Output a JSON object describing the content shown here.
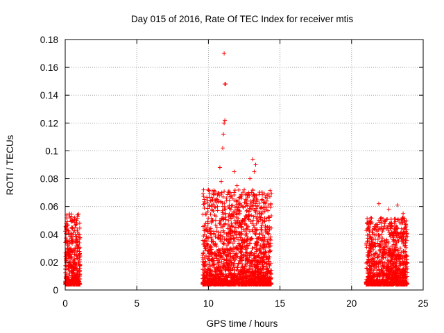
{
  "chart_data": {
    "type": "scatter",
    "title": "Day 015 of 2016, Rate Of TEC Index for receiver mtis",
    "xlabel": "GPS time / hours",
    "ylabel": "ROTI / TECUs",
    "xlim": [
      0,
      25
    ],
    "ylim": [
      0,
      0.18
    ],
    "xticks": [
      0,
      5,
      10,
      15,
      20,
      25
    ],
    "xtick_labels": [
      "0",
      "5",
      "10",
      "15",
      "20",
      "25"
    ],
    "yticks": [
      0,
      0.02,
      0.04,
      0.06,
      0.08,
      0.1,
      0.12,
      0.14,
      0.16,
      0.18
    ],
    "ytick_labels": [
      "0",
      "0.02",
      "0.04",
      "0.06",
      "0.08",
      "0.1",
      "0.12",
      "0.14",
      "0.16",
      "0.18"
    ],
    "grid": true,
    "marker": "+",
    "marker_color": "#ff0000",
    "series": [
      {
        "name": "ROTI",
        "x": [
          0.0,
          0.05,
          0.1,
          0.15,
          0.2,
          0.25,
          0.3,
          0.35,
          0.4,
          0.45,
          0.5,
          0.55,
          0.6,
          0.65,
          0.7,
          0.75,
          0.8,
          0.85,
          0.9,
          0.95,
          1.0,
          0.1,
          0.2,
          0.3,
          0.4,
          0.5,
          0.6,
          0.7,
          0.8,
          0.9,
          0.05,
          0.25,
          0.45,
          0.65,
          0.85,
          9.6,
          9.8,
          10.0,
          10.2,
          10.4,
          10.6,
          10.8,
          11.0,
          11.2,
          11.4,
          11.6,
          11.8,
          12.0,
          12.2,
          12.4,
          12.6,
          12.8,
          13.0,
          13.2,
          13.4,
          13.6,
          13.8,
          14.0,
          14.2,
          9.7,
          10.1,
          10.5,
          10.9,
          11.3,
          11.7,
          12.1,
          12.5,
          12.9,
          13.3,
          13.7,
          14.1,
          9.9,
          10.3,
          10.7,
          11.1,
          11.5,
          11.9,
          12.3,
          12.7,
          13.1,
          13.5,
          13.9,
          10.8,
          10.9,
          11.0,
          11.05,
          11.1,
          11.15,
          11.2,
          11.5,
          11.8,
          12.0,
          12.5,
          12.9,
          13.1,
          13.2,
          13.3,
          21.1,
          21.3,
          21.5,
          21.7,
          21.9,
          22.1,
          22.3,
          22.5,
          22.7,
          22.9,
          23.1,
          23.3,
          23.5,
          23.7,
          21.2,
          21.6,
          22.0,
          22.4,
          22.8,
          23.2,
          23.6,
          21.4,
          21.8,
          22.2,
          22.6,
          23.0,
          23.4,
          21.9,
          22.6,
          23.2,
          23.6
        ],
        "y": [
          0.015,
          0.02,
          0.025,
          0.03,
          0.035,
          0.03,
          0.025,
          0.02,
          0.04,
          0.045,
          0.05,
          0.035,
          0.02,
          0.015,
          0.04,
          0.045,
          0.05,
          0.03,
          0.025,
          0.02,
          0.01,
          0.01,
          0.008,
          0.012,
          0.006,
          0.01,
          0.008,
          0.009,
          0.01,
          0.012,
          0.045,
          0.04,
          0.038,
          0.052,
          0.054,
          0.025,
          0.02,
          0.028,
          0.035,
          0.04,
          0.045,
          0.05,
          0.06,
          0.055,
          0.05,
          0.048,
          0.045,
          0.05,
          0.055,
          0.06,
          0.065,
          0.07,
          0.07,
          0.068,
          0.06,
          0.055,
          0.05,
          0.045,
          0.04,
          0.01,
          0.012,
          0.015,
          0.012,
          0.01,
          0.015,
          0.012,
          0.01,
          0.015,
          0.012,
          0.01,
          0.008,
          0.018,
          0.02,
          0.025,
          0.022,
          0.02,
          0.025,
          0.03,
          0.035,
          0.03,
          0.025,
          0.02,
          0.088,
          0.078,
          0.102,
          0.112,
          0.12,
          0.122,
          0.148,
          0.07,
          0.085,
          0.075,
          0.072,
          0.08,
          0.094,
          0.085,
          0.09,
          0.035,
          0.03,
          0.04,
          0.045,
          0.05,
          0.04,
          0.035,
          0.045,
          0.04,
          0.035,
          0.045,
          0.04,
          0.035,
          0.05,
          0.01,
          0.015,
          0.012,
          0.01,
          0.015,
          0.012,
          0.01,
          0.02,
          0.025,
          0.03,
          0.02,
          0.025,
          0.03,
          0.062,
          0.058,
          0.061,
          0.055
        ],
        "outliers": [
          {
            "x": 11.1,
            "y": 0.17
          },
          {
            "x": 11.15,
            "y": 0.148
          }
        ]
      }
    ]
  }
}
